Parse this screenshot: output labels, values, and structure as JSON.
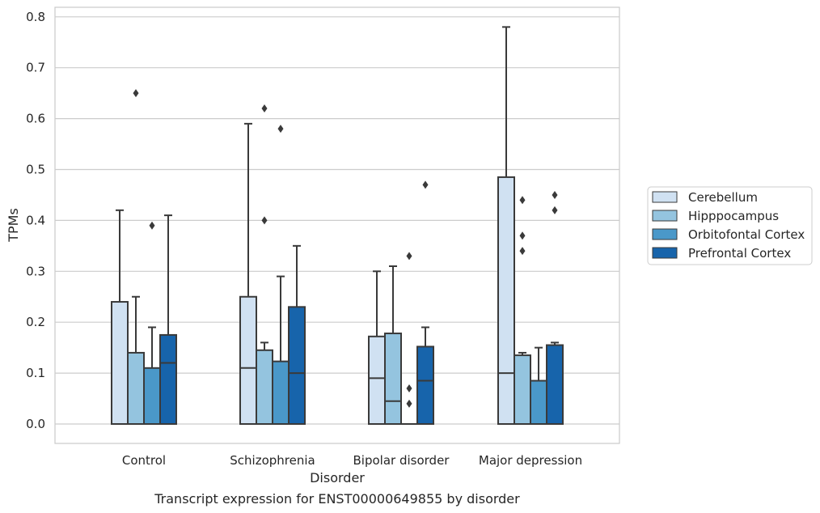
{
  "chart_data": {
    "type": "box",
    "caption": "Transcript expression for ENST00000649855 by disorder",
    "xlabel": "Disorder",
    "ylabel": "TPMs",
    "ylim": [
      -0.04,
      0.82
    ],
    "yticks": [
      0.0,
      0.1,
      0.2,
      0.3,
      0.4,
      0.5,
      0.6,
      0.7,
      0.8
    ],
    "ytick_labels": [
      "0.0",
      "0.1",
      "0.2",
      "0.3",
      "0.4",
      "0.5",
      "0.6",
      "0.7",
      "0.8"
    ],
    "grid": "horizontal",
    "legend_position": "right",
    "categories": [
      "Control",
      "Schizophrenia",
      "Bipolar disorder",
      "Major depression"
    ],
    "series": [
      {
        "name": "Cerebellum",
        "color": "#d0e1f2",
        "boxes": [
          {
            "whislo": 0.0,
            "q1": 0.0,
            "med": 0.0,
            "q3": 0.24,
            "whishi": 0.42,
            "fliers": []
          },
          {
            "whislo": 0.0,
            "q1": 0.0,
            "med": 0.11,
            "q3": 0.25,
            "whishi": 0.59,
            "fliers": []
          },
          {
            "whislo": 0.0,
            "q1": 0.0,
            "med": 0.09,
            "q3": 0.172,
            "whishi": 0.3,
            "fliers": []
          },
          {
            "whislo": 0.0,
            "q1": 0.0,
            "med": 0.1,
            "q3": 0.485,
            "whishi": 0.78,
            "fliers": []
          }
        ]
      },
      {
        "name": "Hipppocampus",
        "color": "#94c4df",
        "boxes": [
          {
            "whislo": 0.0,
            "q1": 0.0,
            "med": 0.0,
            "q3": 0.14,
            "whishi": 0.25,
            "fliers": [
              0.65
            ]
          },
          {
            "whislo": 0.0,
            "q1": 0.0,
            "med": 0.0,
            "q3": 0.145,
            "whishi": 0.16,
            "fliers": [
              0.4,
              0.62
            ]
          },
          {
            "whislo": 0.0,
            "q1": 0.0,
            "med": 0.045,
            "q3": 0.178,
            "whishi": 0.31,
            "fliers": []
          },
          {
            "whislo": 0.0,
            "q1": 0.0,
            "med": 0.0,
            "q3": 0.135,
            "whishi": 0.14,
            "fliers": [
              0.34,
              0.37,
              0.44
            ]
          }
        ]
      },
      {
        "name": "Orbitofontal Cortex",
        "color": "#4a98c9",
        "boxes": [
          {
            "whislo": 0.0,
            "q1": 0.0,
            "med": 0.0,
            "q3": 0.11,
            "whishi": 0.19,
            "fliers": [
              0.39
            ]
          },
          {
            "whislo": 0.0,
            "q1": 0.0,
            "med": 0.0,
            "q3": 0.123,
            "whishi": 0.29,
            "fliers": [
              0.58
            ]
          },
          {
            "whislo": 0.0,
            "q1": 0.0,
            "med": 0.0,
            "q3": 0.0,
            "whishi": 0.0,
            "fliers": [
              0.04,
              0.07,
              0.33
            ]
          },
          {
            "whislo": 0.0,
            "q1": 0.0,
            "med": 0.0,
            "q3": 0.085,
            "whishi": 0.15,
            "fliers": []
          }
        ]
      },
      {
        "name": "Prefrontal Cortex",
        "color": "#1764ab",
        "boxes": [
          {
            "whislo": 0.0,
            "q1": 0.0,
            "med": 0.12,
            "q3": 0.175,
            "whishi": 0.41,
            "fliers": []
          },
          {
            "whislo": 0.0,
            "q1": 0.0,
            "med": 0.1,
            "q3": 0.23,
            "whishi": 0.35,
            "fliers": []
          },
          {
            "whislo": 0.0,
            "q1": 0.0,
            "med": 0.085,
            "q3": 0.152,
            "whishi": 0.19,
            "fliers": [
              0.47
            ]
          },
          {
            "whislo": 0.0,
            "q1": 0.0,
            "med": 0.0,
            "q3": 0.155,
            "whishi": 0.16,
            "fliers": [
              0.42,
              0.45
            ]
          }
        ]
      }
    ]
  }
}
